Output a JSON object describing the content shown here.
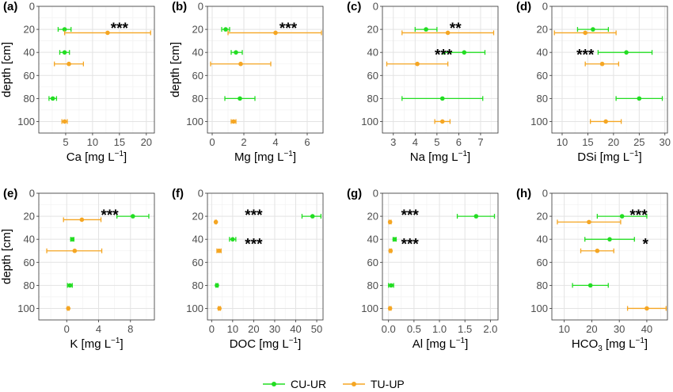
{
  "colors": {
    "CU-UR": "#22dd22",
    "TU-UP": "#f5a623"
  },
  "legend": {
    "items": [
      {
        "label": "CU-UR",
        "color": "#22dd22"
      },
      {
        "label": "TU-UP",
        "color": "#f5a623"
      }
    ]
  },
  "chart_data": [
    {
      "tag": "(a)",
      "type": "scatter",
      "xlabel": "Ca [mg L",
      "xlabel_sup": "−1",
      "xlabel_tail": "]",
      "ylabel": "depth [cm]",
      "xlim": [
        0,
        21.5
      ],
      "ylim": [
        0,
        110
      ],
      "x_ticks": [
        5,
        10,
        15,
        20
      ],
      "x_ticklabels": [
        "5",
        "10",
        "15",
        "20"
      ],
      "y_ticks": [
        0,
        20,
        40,
        60,
        80,
        100
      ],
      "y_ticklabels": [
        "0",
        "20",
        "40",
        "60",
        "80",
        "100"
      ],
      "grid": true,
      "series": [
        {
          "name": "CU-UR",
          "points": [
            {
              "depth": 20,
              "x": 4.8,
              "lo": 3.6,
              "hi": 6.0
            },
            {
              "depth": 40,
              "x": 4.8,
              "lo": 3.9,
              "hi": 5.7
            },
            {
              "depth": 80,
              "x": 2.6,
              "lo": 1.9,
              "hi": 3.3
            }
          ]
        },
        {
          "name": "TU-UP",
          "points": [
            {
              "depth": 23,
              "x": 12.8,
              "lo": 4.8,
              "hi": 20.8
            },
            {
              "depth": 50,
              "x": 5.6,
              "lo": 2.9,
              "hi": 8.3
            },
            {
              "depth": 100,
              "x": 4.8,
              "lo": 4.3,
              "hi": 5.3
            }
          ]
        }
      ],
      "annotations": [
        {
          "text": "***",
          "x": 15.0,
          "depth": 18
        }
      ]
    },
    {
      "tag": "(b)",
      "type": "scatter",
      "xlabel": "Mg [mg L",
      "xlabel_sup": "−1",
      "xlabel_tail": "]",
      "ylabel": "depth [cm]",
      "xlim": [
        -0.3,
        7.0
      ],
      "ylim": [
        0,
        110
      ],
      "x_ticks": [
        0,
        2,
        4,
        6
      ],
      "x_ticklabels": [
        "0",
        "2",
        "4",
        "6"
      ],
      "y_ticks": [
        0,
        20,
        40,
        60,
        80,
        100
      ],
      "y_ticklabels": [
        "0",
        "20",
        "40",
        "60",
        "80",
        "100"
      ],
      "grid": true,
      "series": [
        {
          "name": "CU-UR",
          "points": [
            {
              "depth": 20,
              "x": 0.85,
              "lo": 0.6,
              "hi": 1.1
            },
            {
              "depth": 40,
              "x": 1.5,
              "lo": 1.2,
              "hi": 1.9
            },
            {
              "depth": 80,
              "x": 1.75,
              "lo": 0.8,
              "hi": 2.7
            }
          ]
        },
        {
          "name": "TU-UP",
          "points": [
            {
              "depth": 23,
              "x": 4.0,
              "lo": 1.0,
              "hi": 6.9
            },
            {
              "depth": 50,
              "x": 1.8,
              "lo": -0.1,
              "hi": 3.7
            },
            {
              "depth": 100,
              "x": 1.35,
              "lo": 1.2,
              "hi": 1.5
            }
          ]
        }
      ],
      "annotations": [
        {
          "text": "***",
          "x": 4.8,
          "depth": 18
        }
      ]
    },
    {
      "tag": "(c)",
      "type": "scatter",
      "xlabel": "Na [mg L",
      "xlabel_sup": "−1",
      "xlabel_tail": "]",
      "ylabel": "",
      "xlim": [
        2.5,
        7.8
      ],
      "ylim": [
        0,
        110
      ],
      "x_ticks": [
        3,
        4,
        5,
        6,
        7
      ],
      "x_ticklabels": [
        "3",
        "4",
        "5",
        "6",
        "7"
      ],
      "y_ticks": [
        0,
        20,
        40,
        60,
        80,
        100
      ],
      "y_ticklabels": [
        "0",
        "20",
        "40",
        "60",
        "80",
        "100"
      ],
      "grid": true,
      "series": [
        {
          "name": "CU-UR",
          "points": [
            {
              "depth": 20,
              "x": 4.5,
              "lo": 4.0,
              "hi": 5.0
            },
            {
              "depth": 40,
              "x": 6.25,
              "lo": 5.3,
              "hi": 7.2
            },
            {
              "depth": 80,
              "x": 5.25,
              "lo": 3.4,
              "hi": 7.1
            }
          ]
        },
        {
          "name": "TU-UP",
          "points": [
            {
              "depth": 23,
              "x": 5.5,
              "lo": 3.4,
              "hi": 7.6
            },
            {
              "depth": 50,
              "x": 4.1,
              "lo": 2.7,
              "hi": 5.5
            },
            {
              "depth": 100,
              "x": 5.25,
              "lo": 4.9,
              "hi": 5.6
            }
          ]
        }
      ],
      "annotations": [
        {
          "text": "**",
          "x": 5.85,
          "depth": 18
        },
        {
          "text": "***",
          "x": 5.3,
          "depth": 41
        }
      ]
    },
    {
      "tag": "(d)",
      "type": "scatter",
      "xlabel": "DSi [mg L",
      "xlabel_sup": "−1",
      "xlabel_tail": "]",
      "ylabel": "",
      "xlim": [
        8.0,
        30.5
      ],
      "ylim": [
        0,
        110
      ],
      "x_ticks": [
        10,
        15,
        20,
        25,
        30
      ],
      "x_ticklabels": [
        "10",
        "15",
        "20",
        "25",
        "30"
      ],
      "y_ticks": [
        0,
        20,
        40,
        60,
        80,
        100
      ],
      "y_ticklabels": [
        "0",
        "20",
        "40",
        "60",
        "80",
        "100"
      ],
      "grid": true,
      "series": [
        {
          "name": "CU-UR",
          "points": [
            {
              "depth": 20,
              "x": 16.0,
              "lo": 13.0,
              "hi": 19.0
            },
            {
              "depth": 40,
              "x": 22.5,
              "lo": 17.0,
              "hi": 27.5
            },
            {
              "depth": 80,
              "x": 25.0,
              "lo": 20.5,
              "hi": 29.5
            }
          ]
        },
        {
          "name": "TU-UP",
          "points": [
            {
              "depth": 23,
              "x": 14.5,
              "lo": 8.5,
              "hi": 20.5
            },
            {
              "depth": 50,
              "x": 17.8,
              "lo": 14.5,
              "hi": 21.0
            },
            {
              "depth": 100,
              "x": 18.5,
              "lo": 15.5,
              "hi": 21.5
            }
          ]
        }
      ],
      "annotations": [
        {
          "text": "***",
          "x": 14.5,
          "depth": 41
        }
      ]
    },
    {
      "tag": "(e)",
      "type": "scatter",
      "xlabel": "K [mg L",
      "xlabel_sup": "−1",
      "xlabel_tail": "]",
      "ylabel": "depth [cm]",
      "xlim": [
        -3.5,
        11.0
      ],
      "ylim": [
        0,
        110
      ],
      "x_ticks": [
        0,
        4,
        8
      ],
      "x_ticklabels": [
        "0",
        "4",
        "8"
      ],
      "y_ticks": [
        0,
        20,
        40,
        60,
        80,
        100
      ],
      "y_ticklabels": [
        "0",
        "20",
        "40",
        "60",
        "80",
        "100"
      ],
      "grid": true,
      "series": [
        {
          "name": "CU-UR",
          "points": [
            {
              "depth": 20,
              "x": 8.3,
              "lo": 6.3,
              "hi": 10.3
            },
            {
              "depth": 40,
              "x": 0.7,
              "lo": 0.5,
              "hi": 0.9
            },
            {
              "depth": 80,
              "x": 0.4,
              "lo": 0.1,
              "hi": 0.7
            }
          ]
        },
        {
          "name": "TU-UP",
          "points": [
            {
              "depth": 23,
              "x": 1.9,
              "lo": -0.4,
              "hi": 4.3
            },
            {
              "depth": 50,
              "x": 1.0,
              "lo": -2.5,
              "hi": 4.4
            },
            {
              "depth": 100,
              "x": 0.2,
              "lo": 0.1,
              "hi": 0.3
            }
          ]
        }
      ],
      "annotations": [
        {
          "text": "***",
          "x": 5.4,
          "depth": 18
        }
      ]
    },
    {
      "tag": "(f)",
      "type": "scatter",
      "xlabel": "DOC [mg L",
      "xlabel_sup": "−1",
      "xlabel_tail": "]",
      "ylabel": "",
      "xlim": [
        -2.0,
        53.0
      ],
      "ylim": [
        0,
        110
      ],
      "x_ticks": [
        0,
        10,
        20,
        30,
        40,
        50
      ],
      "x_ticklabels": [
        "0",
        "10",
        "20",
        "30",
        "40",
        "50"
      ],
      "y_ticks": [
        0,
        20,
        40,
        60,
        80,
        100
      ],
      "y_ticklabels": [
        "0",
        "20",
        "40",
        "60",
        "80",
        "100"
      ],
      "grid": true,
      "series": [
        {
          "name": "CU-UR",
          "points": [
            {
              "depth": 20,
              "x": 48.0,
              "lo": 43.0,
              "hi": 52.0
            },
            {
              "depth": 40,
              "x": 10.0,
              "lo": 8.5,
              "hi": 11.5
            },
            {
              "depth": 80,
              "x": 2.5,
              "lo": 2.0,
              "hi": 3.0
            }
          ]
        },
        {
          "name": "TU-UP",
          "points": [
            {
              "depth": 25,
              "x": 2.0,
              "lo": 1.7,
              "hi": 2.3
            },
            {
              "depth": 50,
              "x": 3.5,
              "lo": 2.5,
              "hi": 4.5
            },
            {
              "depth": 100,
              "x": 3.7,
              "lo": 3.2,
              "hi": 4.2
            }
          ]
        }
      ],
      "annotations": [
        {
          "text": "***",
          "x": 20.0,
          "depth": 18
        },
        {
          "text": "***",
          "x": 20.0,
          "depth": 43
        }
      ]
    },
    {
      "tag": "(g)",
      "type": "scatter",
      "xlabel": "Al [mg L",
      "xlabel_sup": "−1",
      "xlabel_tail": "]",
      "ylabel": "",
      "xlim": [
        -0.12,
        2.15
      ],
      "ylim": [
        0,
        110
      ],
      "x_ticks": [
        0.0,
        0.5,
        1.0,
        1.5,
        2.0
      ],
      "x_ticklabels": [
        "0.0",
        "0.5",
        "1.0",
        "1.5",
        "2.0"
      ],
      "y_ticks": [
        0,
        20,
        40,
        60,
        80,
        100
      ],
      "y_ticklabels": [
        "0",
        "20",
        "40",
        "60",
        "80",
        "100"
      ],
      "grid": true,
      "series": [
        {
          "name": "CU-UR",
          "points": [
            {
              "depth": 20,
              "x": 1.72,
              "lo": 1.35,
              "hi": 2.08
            },
            {
              "depth": 40,
              "x": 0.12,
              "lo": 0.09,
              "hi": 0.15
            },
            {
              "depth": 80,
              "x": 0.05,
              "lo": 0.0,
              "hi": 0.1
            }
          ]
        },
        {
          "name": "TU-UP",
          "points": [
            {
              "depth": 25,
              "x": 0.03,
              "lo": 0.01,
              "hi": 0.05
            },
            {
              "depth": 50,
              "x": 0.04,
              "lo": 0.02,
              "hi": 0.06
            },
            {
              "depth": 100,
              "x": 0.03,
              "lo": 0.01,
              "hi": 0.05
            }
          ]
        }
      ],
      "annotations": [
        {
          "text": "***",
          "x": 0.42,
          "depth": 18
        },
        {
          "text": "***",
          "x": 0.42,
          "depth": 43
        }
      ]
    },
    {
      "tag": "(h)",
      "type": "scatter",
      "xlabel": "HCO",
      "xlabel_sub": "3",
      "xlabel_mid": " [mg L",
      "xlabel_sup": "−1",
      "xlabel_tail": "]",
      "ylabel": "",
      "xlim": [
        5.5,
        47.5
      ],
      "ylim": [
        0,
        110
      ],
      "x_ticks": [
        10,
        20,
        30,
        40
      ],
      "x_ticklabels": [
        "10",
        "20",
        "30",
        "40"
      ],
      "y_ticks": [
        0,
        20,
        40,
        60,
        80,
        100
      ],
      "y_ticklabels": [
        "0",
        "20",
        "40",
        "60",
        "80",
        "100"
      ],
      "grid": true,
      "series": [
        {
          "name": "CU-UR",
          "points": [
            {
              "depth": 20,
              "x": 31.0,
              "lo": 22.0,
              "hi": 40.0
            },
            {
              "depth": 40,
              "x": 26.5,
              "lo": 17.5,
              "hi": 35.5
            },
            {
              "depth": 80,
              "x": 19.5,
              "lo": 13.0,
              "hi": 26.0
            }
          ]
        },
        {
          "name": "TU-UP",
          "points": [
            {
              "depth": 25,
              "x": 19.0,
              "lo": 7.5,
              "hi": 30.5
            },
            {
              "depth": 50,
              "x": 22.0,
              "lo": 16.0,
              "hi": 28.0
            },
            {
              "depth": 100,
              "x": 40.0,
              "lo": 33.0,
              "hi": 47.0
            }
          ]
        }
      ],
      "annotations": [
        {
          "text": "***",
          "x": 37.0,
          "depth": 18
        },
        {
          "text": "*",
          "x": 39.5,
          "depth": 43
        }
      ]
    }
  ]
}
